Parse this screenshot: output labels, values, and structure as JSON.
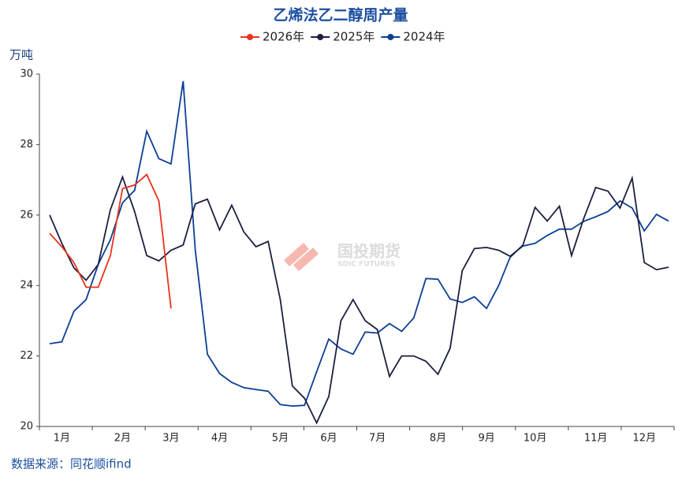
{
  "chart_data": {
    "type": "line",
    "title": "乙烯法乙二醇周产量",
    "y_label": "万吨",
    "source": "数据来源：同花顺ifind",
    "watermark": "国投期货",
    "watermark_sub": "SDIC FUTURES",
    "categories": [
      null,
      "1月",
      null,
      null,
      null,
      null,
      "2月",
      null,
      null,
      null,
      "3月",
      null,
      null,
      null,
      "4月",
      null,
      null,
      null,
      null,
      "5月",
      null,
      null,
      null,
      "6月",
      null,
      null,
      null,
      "7月",
      null,
      null,
      null,
      null,
      "8月",
      null,
      null,
      null,
      "9月",
      null,
      null,
      null,
      "10月",
      null,
      null,
      null,
      null,
      "11月",
      null,
      null,
      null,
      "12月",
      null,
      null
    ],
    "series": [
      {
        "name": "2026年",
        "color": "#e8341c",
        "values": [
          25.48,
          25.1,
          24.65,
          23.95,
          23.95,
          24.85,
          26.75,
          26.85,
          27.15,
          26.4,
          23.35,
          null,
          null,
          null,
          null,
          null,
          null,
          null,
          null,
          null,
          null,
          null,
          null,
          null,
          null,
          null,
          null,
          null,
          null,
          null,
          null,
          null,
          null,
          null,
          null,
          null,
          null,
          null,
          null,
          null,
          null,
          null,
          null,
          null,
          null,
          null,
          null,
          null,
          null,
          null,
          null,
          null
        ]
      },
      {
        "name": "2025年",
        "color": "#1c1f3f",
        "values": [
          26.0,
          25.2,
          24.5,
          24.15,
          24.6,
          26.15,
          27.08,
          26.1,
          24.85,
          24.7,
          25.0,
          25.15,
          26.32,
          26.45,
          25.58,
          26.28,
          25.52,
          25.1,
          25.25,
          23.6,
          21.15,
          20.8,
          20.1,
          20.85,
          23.0,
          23.6,
          23.0,
          22.75,
          21.42,
          22.0,
          22.0,
          21.85,
          21.48,
          22.22,
          24.42,
          25.05,
          25.08,
          25.0,
          24.82,
          25.15,
          26.22,
          25.83,
          26.25,
          24.85,
          25.9,
          26.78,
          26.68,
          26.2,
          27.05,
          24.65,
          24.45,
          24.52
        ]
      },
      {
        "name": "2024年",
        "color": "#0b3f94",
        "values": [
          22.35,
          22.4,
          23.27,
          23.6,
          24.6,
          25.3,
          26.35,
          26.7,
          28.38,
          27.6,
          27.45,
          29.8,
          25.0,
          22.05,
          21.5,
          21.25,
          21.1,
          21.05,
          21.0,
          20.62,
          20.58,
          20.6,
          21.55,
          22.48,
          22.2,
          22.05,
          22.68,
          22.65,
          22.92,
          22.7,
          23.08,
          24.2,
          24.18,
          23.62,
          23.52,
          23.68,
          23.35,
          24.0,
          24.85,
          25.12,
          25.2,
          25.42,
          25.6,
          25.6,
          25.82,
          25.95,
          26.1,
          26.4,
          26.2,
          25.55,
          26.02,
          25.83
        ]
      }
    ],
    "ylim": [
      20,
      30
    ],
    "yticks": [
      20,
      22,
      24,
      26,
      28,
      30
    ],
    "grid": false
  }
}
